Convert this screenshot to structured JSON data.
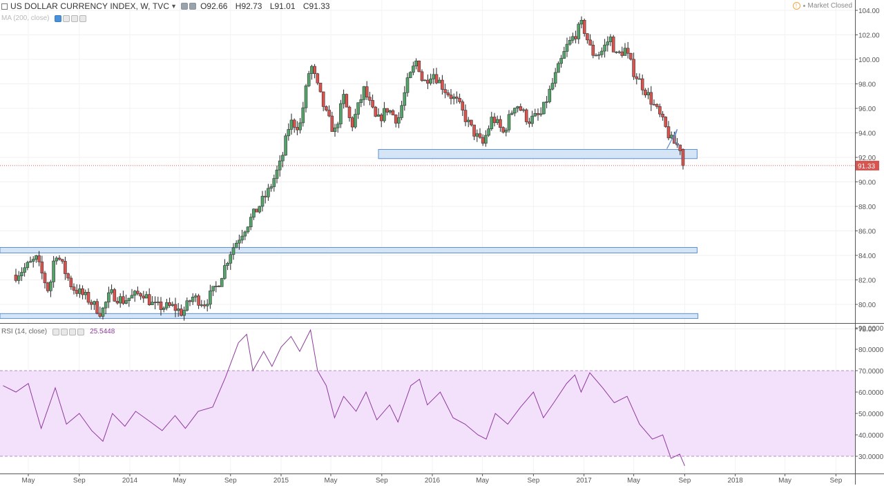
{
  "header": {
    "symbol_label": "US DOLLAR CURRENCY INDEX, W, TVC",
    "ohlc": {
      "open": "O92.66",
      "high": "H92.73",
      "low": "L91.01",
      "close": "C91.33"
    },
    "market_status": "Market Closed",
    "icons": [
      "series-icon",
      "chevron-down-icon",
      "settings-icon",
      "close-icon",
      "warning-icon"
    ]
  },
  "ma_legend": {
    "label": "MA (200, close)"
  },
  "rsi_legend": {
    "label": "RSI (14, close)",
    "value": "25.5448"
  },
  "colors": {
    "up": "#53a36a",
    "down": "#d9534f",
    "wick": "#222222",
    "zone_fill": "#cfe0f5",
    "zone_stroke": "#5b8fd1",
    "rsi_line": "#8d3a9c",
    "rsi_band": "#f3e1fc",
    "price_line": "#d9534f",
    "axis_text": "#555555"
  },
  "chart_data": [
    {
      "type": "candlestick",
      "title": "US DOLLAR CURRENCY INDEX, W, TVC",
      "interval": "W",
      "x_tick_labels": [
        "May",
        "Sep",
        "2014",
        "May",
        "Sep",
        "2015",
        "May",
        "Sep",
        "2016",
        "May",
        "Sep",
        "2017",
        "May",
        "Sep",
        "2018",
        "May",
        "Sep"
      ],
      "y_tick_labels": [
        "78.00",
        "80.00",
        "82.00",
        "84.00",
        "86.00",
        "88.00",
        "90.00",
        "92.00",
        "94.00",
        "96.00",
        "98.00",
        "100.00",
        "102.00",
        "104.00"
      ],
      "ylim": [
        77.2,
        104.9
      ],
      "last_price_label": "91.33",
      "last_price": 91.33,
      "anchors": [
        {
          "date": "2013-04-01",
          "close": 82.4
        },
        {
          "date": "2013-05-20",
          "close": 83.7
        },
        {
          "date": "2013-06-20",
          "close": 81.0
        },
        {
          "date": "2013-07-05",
          "close": 84.4
        },
        {
          "date": "2013-08-15",
          "close": 81.4
        },
        {
          "date": "2013-09-20",
          "close": 80.5
        },
        {
          "date": "2013-10-24",
          "close": 79.3
        },
        {
          "date": "2013-11-15",
          "close": 80.9
        },
        {
          "date": "2013-12-15",
          "close": 80.3
        },
        {
          "date": "2014-02-01",
          "close": 81.0
        },
        {
          "date": "2014-03-01",
          "close": 79.8
        },
        {
          "date": "2014-04-15",
          "close": 79.8
        },
        {
          "date": "2014-05-08",
          "close": 79.3
        },
        {
          "date": "2014-06-01",
          "close": 80.6
        },
        {
          "date": "2014-07-01",
          "close": 80.1
        },
        {
          "date": "2014-08-01",
          "close": 81.6
        },
        {
          "date": "2014-09-01",
          "close": 84.3
        },
        {
          "date": "2014-10-01",
          "close": 86.0
        },
        {
          "date": "2014-11-01",
          "close": 87.6
        },
        {
          "date": "2014-12-01",
          "close": 89.2
        },
        {
          "date": "2015-01-01",
          "close": 91.6
        },
        {
          "date": "2015-01-22",
          "close": 94.9
        },
        {
          "date": "2015-02-15",
          "close": 94.5
        },
        {
          "date": "2015-03-13",
          "close": 99.7
        },
        {
          "date": "2015-04-01",
          "close": 97.5
        },
        {
          "date": "2015-04-20",
          "close": 95.5
        },
        {
          "date": "2015-05-10",
          "close": 94.0
        },
        {
          "date": "2015-06-01",
          "close": 96.9
        },
        {
          "date": "2015-06-20",
          "close": 94.5
        },
        {
          "date": "2015-07-20",
          "close": 97.5
        },
        {
          "date": "2015-08-20",
          "close": 94.9
        },
        {
          "date": "2015-09-15",
          "close": 96.0
        },
        {
          "date": "2015-10-10",
          "close": 95.0
        },
        {
          "date": "2015-11-01",
          "close": 98.0
        },
        {
          "date": "2015-11-25",
          "close": 100.0
        },
        {
          "date": "2015-12-10",
          "close": 98.0
        },
        {
          "date": "2016-01-01",
          "close": 99.0
        },
        {
          "date": "2016-02-01",
          "close": 97.5
        },
        {
          "date": "2016-03-01",
          "close": 96.5
        },
        {
          "date": "2016-04-01",
          "close": 94.5
        },
        {
          "date": "2016-05-01",
          "close": 93.0
        },
        {
          "date": "2016-05-25",
          "close": 95.3
        },
        {
          "date": "2016-06-20",
          "close": 94.0
        },
        {
          "date": "2016-07-20",
          "close": 96.5
        },
        {
          "date": "2016-08-20",
          "close": 95.0
        },
        {
          "date": "2016-09-20",
          "close": 95.5
        },
        {
          "date": "2016-10-20",
          "close": 98.3
        },
        {
          "date": "2016-11-20",
          "close": 101.0
        },
        {
          "date": "2016-12-28",
          "close": 102.9
        },
        {
          "date": "2017-01-20",
          "close": 100.5
        },
        {
          "date": "2017-02-10",
          "close": 100.5
        },
        {
          "date": "2017-03-05",
          "close": 101.8
        },
        {
          "date": "2017-03-20",
          "close": 100.3
        },
        {
          "date": "2017-04-10",
          "close": 100.8
        },
        {
          "date": "2017-05-01",
          "close": 99.0
        },
        {
          "date": "2017-06-01",
          "close": 97.3
        },
        {
          "date": "2017-07-01",
          "close": 95.5
        },
        {
          "date": "2017-08-01",
          "close": 93.3
        },
        {
          "date": "2017-08-25",
          "close": 92.7
        },
        {
          "date": "2017-09-01",
          "close": 91.33
        }
      ],
      "annotations": [
        {
          "name": "support-zone-upper",
          "x0": "2015-08-24",
          "x1": "2017-10-01",
          "y0": 91.9,
          "y1": 92.65
        },
        {
          "name": "support-zone-middle",
          "x0": "2013-01-01",
          "x1": "2017-10-01",
          "y0": 84.2,
          "y1": 84.65
        },
        {
          "name": "support-zone-lower",
          "x0": "2013-01-01",
          "x1": "2017-10-03",
          "y0": 78.85,
          "y1": 79.25
        }
      ]
    },
    {
      "type": "line",
      "title": "RSI (14, close)",
      "y_tick_labels": [
        "30.0000",
        "40.0000",
        "50.0000",
        "60.0000",
        "70.0000",
        "80.0000",
        "90.0000"
      ],
      "ylim": [
        22,
        91.5
      ],
      "band": [
        30,
        70
      ],
      "last_value": 25.5448,
      "series": [
        {
          "values": [
            {
              "date": "2013-03-01",
              "value": 63
            },
            {
              "date": "2013-04-01",
              "value": 60
            },
            {
              "date": "2013-05-01",
              "value": 64
            },
            {
              "date": "2013-06-01",
              "value": 43
            },
            {
              "date": "2013-07-05",
              "value": 62
            },
            {
              "date": "2013-08-01",
              "value": 45
            },
            {
              "date": "2013-09-01",
              "value": 50
            },
            {
              "date": "2013-10-01",
              "value": 42
            },
            {
              "date": "2013-10-28",
              "value": 37
            },
            {
              "date": "2013-11-20",
              "value": 50
            },
            {
              "date": "2013-12-20",
              "value": 44
            },
            {
              "date": "2014-01-15",
              "value": 51
            },
            {
              "date": "2014-02-20",
              "value": 46
            },
            {
              "date": "2014-03-20",
              "value": 42
            },
            {
              "date": "2014-04-20",
              "value": 49
            },
            {
              "date": "2014-05-15",
              "value": 43
            },
            {
              "date": "2014-06-15",
              "value": 51
            },
            {
              "date": "2014-07-20",
              "value": 53
            },
            {
              "date": "2014-08-20",
              "value": 67
            },
            {
              "date": "2014-09-20",
              "value": 83
            },
            {
              "date": "2014-10-10",
              "value": 87
            },
            {
              "date": "2014-10-25",
              "value": 70
            },
            {
              "date": "2014-11-20",
              "value": 79
            },
            {
              "date": "2014-12-10",
              "value": 72
            },
            {
              "date": "2015-01-01",
              "value": 81
            },
            {
              "date": "2015-01-25",
              "value": 86
            },
            {
              "date": "2015-02-15",
              "value": 79
            },
            {
              "date": "2015-03-13",
              "value": 89
            },
            {
              "date": "2015-03-30",
              "value": 70
            },
            {
              "date": "2015-04-20",
              "value": 63
            },
            {
              "date": "2015-05-10",
              "value": 48
            },
            {
              "date": "2015-06-01",
              "value": 58
            },
            {
              "date": "2015-07-01",
              "value": 51
            },
            {
              "date": "2015-07-25",
              "value": 60
            },
            {
              "date": "2015-08-20",
              "value": 47
            },
            {
              "date": "2015-09-20",
              "value": 54
            },
            {
              "date": "2015-10-10",
              "value": 46
            },
            {
              "date": "2015-11-10",
              "value": 63
            },
            {
              "date": "2015-12-01",
              "value": 66
            },
            {
              "date": "2015-12-20",
              "value": 54
            },
            {
              "date": "2016-01-20",
              "value": 60
            },
            {
              "date": "2016-02-20",
              "value": 48
            },
            {
              "date": "2016-03-20",
              "value": 45
            },
            {
              "date": "2016-04-20",
              "value": 40
            },
            {
              "date": "2016-05-10",
              "value": 38
            },
            {
              "date": "2016-06-01",
              "value": 50
            },
            {
              "date": "2016-07-01",
              "value": 45
            },
            {
              "date": "2016-08-01",
              "value": 53
            },
            {
              "date": "2016-09-01",
              "value": 60
            },
            {
              "date": "2016-09-25",
              "value": 48
            },
            {
              "date": "2016-10-20",
              "value": 55
            },
            {
              "date": "2016-11-20",
              "value": 64
            },
            {
              "date": "2016-12-10",
              "value": 68
            },
            {
              "date": "2016-12-25",
              "value": 60
            },
            {
              "date": "2017-01-15",
              "value": 69
            },
            {
              "date": "2017-02-15",
              "value": 62
            },
            {
              "date": "2017-03-15",
              "value": 55
            },
            {
              "date": "2017-04-15",
              "value": 58
            },
            {
              "date": "2017-05-15",
              "value": 45
            },
            {
              "date": "2017-06-15",
              "value": 38
            },
            {
              "date": "2017-07-10",
              "value": 40
            },
            {
              "date": "2017-07-30",
              "value": 29
            },
            {
              "date": "2017-08-20",
              "value": 31
            },
            {
              "date": "2017-09-01",
              "value": 25.5448
            }
          ]
        }
      ]
    }
  ]
}
